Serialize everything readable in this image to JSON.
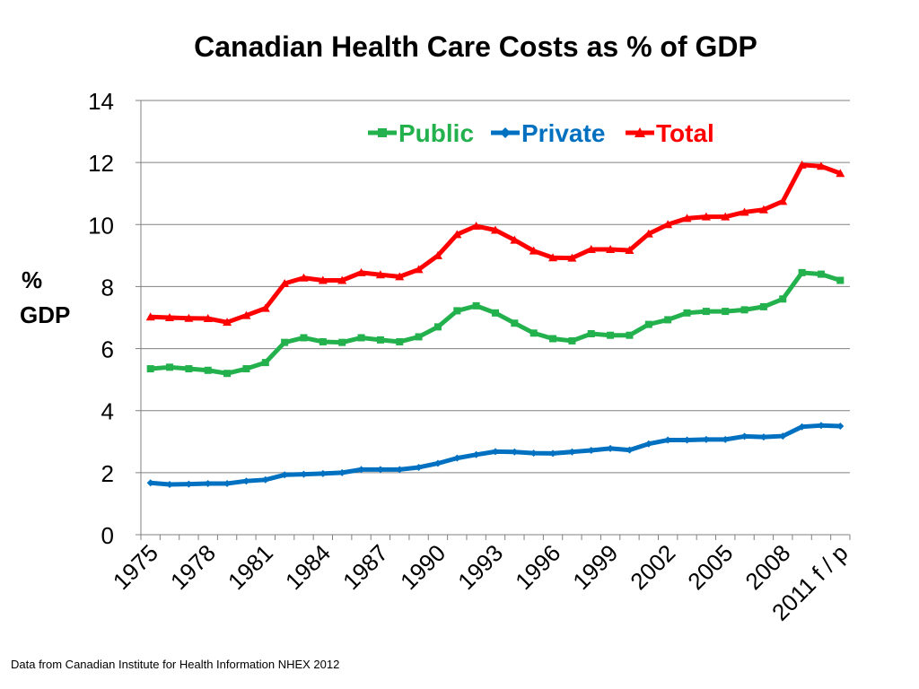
{
  "chart_data": {
    "type": "line",
    "title": "Canadian Health Care Costs as % of GDP",
    "ylabel_lines": [
      "%",
      "GDP"
    ],
    "xlabel": "",
    "ylim": [
      0,
      14
    ],
    "yticks": [
      0,
      2,
      4,
      6,
      8,
      10,
      12,
      14
    ],
    "x_tick_labels": [
      {
        "index": 0,
        "label": "1975"
      },
      {
        "index": 3,
        "label": "1978"
      },
      {
        "index": 6,
        "label": "1981"
      },
      {
        "index": 9,
        "label": "1984"
      },
      {
        "index": 12,
        "label": "1987"
      },
      {
        "index": 15,
        "label": "1990"
      },
      {
        "index": 18,
        "label": "1993"
      },
      {
        "index": 21,
        "label": "1996"
      },
      {
        "index": 24,
        "label": "1999"
      },
      {
        "index": 27,
        "label": "2002"
      },
      {
        "index": 30,
        "label": "2005"
      },
      {
        "index": 33,
        "label": "2008"
      },
      {
        "index": 36,
        "label": "2011 f / p"
      }
    ],
    "categories": [
      "1975",
      "1976",
      "1977",
      "1978",
      "1979",
      "1980",
      "1981",
      "1982",
      "1983",
      "1984",
      "1985",
      "1986",
      "1987",
      "1988",
      "1989",
      "1990",
      "1991",
      "1992",
      "1993",
      "1994",
      "1995",
      "1996",
      "1997",
      "1998",
      "1999",
      "2000",
      "2001",
      "2002",
      "2003",
      "2004",
      "2005",
      "2006",
      "2007",
      "2008",
      "2009",
      "2010",
      "2011 f / p"
    ],
    "grid": true,
    "legend_position": "top-right",
    "series": [
      {
        "name": "Public",
        "color": "#22b14c",
        "marker": "square",
        "values": [
          5.35,
          5.4,
          5.35,
          5.3,
          5.2,
          5.35,
          5.55,
          6.2,
          6.35,
          6.22,
          6.2,
          6.35,
          6.28,
          6.22,
          6.38,
          6.7,
          7.22,
          7.38,
          7.15,
          6.82,
          6.5,
          6.32,
          6.25,
          6.48,
          6.43,
          6.43,
          6.78,
          6.93,
          7.15,
          7.2,
          7.2,
          7.25,
          7.35,
          7.6,
          8.45,
          8.4,
          8.2
        ]
      },
      {
        "name": "Private",
        "color": "#0070c0",
        "marker": "diamond",
        "values": [
          1.67,
          1.62,
          1.63,
          1.65,
          1.65,
          1.73,
          1.77,
          1.93,
          1.95,
          1.97,
          2.0,
          2.1,
          2.1,
          2.1,
          2.17,
          2.3,
          2.47,
          2.58,
          2.68,
          2.67,
          2.63,
          2.62,
          2.67,
          2.72,
          2.78,
          2.73,
          2.93,
          3.05,
          3.05,
          3.07,
          3.07,
          3.17,
          3.15,
          3.18,
          3.48,
          3.52,
          3.5
        ]
      },
      {
        "name": "Total",
        "color": "#ff0000",
        "marker": "triangle",
        "values": [
          7.02,
          7.0,
          6.98,
          6.97,
          6.85,
          7.07,
          7.3,
          8.1,
          8.28,
          8.2,
          8.2,
          8.45,
          8.38,
          8.32,
          8.55,
          9.0,
          9.68,
          9.95,
          9.82,
          9.5,
          9.15,
          8.93,
          8.92,
          9.2,
          9.2,
          9.17,
          9.7,
          10.0,
          10.2,
          10.25,
          10.25,
          10.4,
          10.48,
          10.75,
          11.92,
          11.88,
          11.65
        ]
      }
    ]
  },
  "legend": {
    "public": "Public",
    "private": "Private",
    "total": "Total"
  },
  "source_note": "Data from Canadian Institute for Health Information NHEX 2012"
}
